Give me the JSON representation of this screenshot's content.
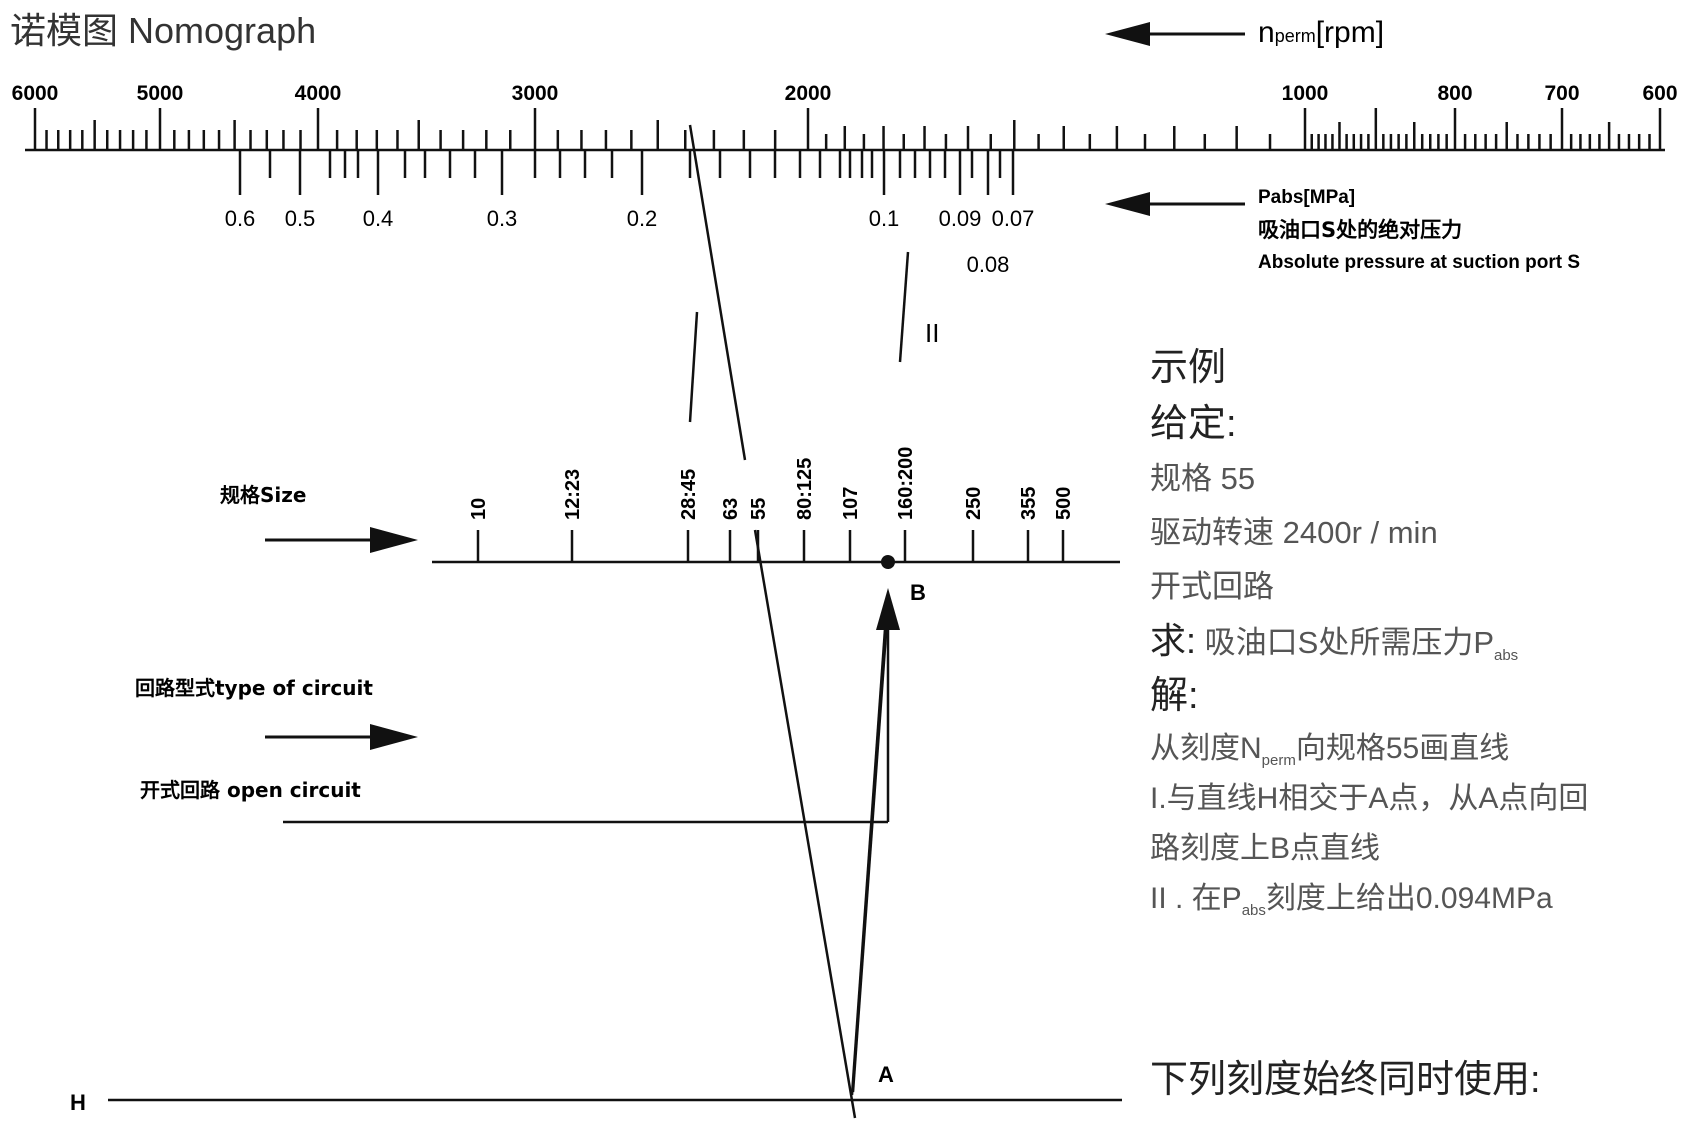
{
  "title": "诺模图 Nomograph",
  "rpm_scale": {
    "label": "n",
    "label_sub": "perm",
    "label_unit": "[rpm]",
    "ticks": [
      "6000",
      "5000",
      "4000",
      "3000",
      "2000",
      "1000",
      "800",
      "700",
      "600"
    ]
  },
  "pressure_scale": {
    "label": "Pabs[MPa]",
    "label_cn": "吸油口S处的绝对压力",
    "label_en": "Absolute pressure at suction port S",
    "ticks": [
      "0.6",
      "0.5",
      "0.4",
      "0.3",
      "0.2",
      "0.1",
      "0.09",
      "0.07",
      "0.08"
    ]
  },
  "size_scale": {
    "label": "规格Size",
    "ticks": [
      "10",
      "12:23",
      "28:45",
      "63",
      "55",
      "80:125",
      "107",
      "160:200",
      "250",
      "355",
      "500"
    ]
  },
  "circuit": {
    "label": "回路型式type of circuit",
    "open_label": "开式回路 open circuit"
  },
  "markers": {
    "A": "A",
    "B": "B",
    "H": "H",
    "II": "II"
  },
  "example": {
    "heading": "示例",
    "given": "给定:",
    "size": "规格 55",
    "speed": "驱动转速 2400r / min",
    "circuit": "开式回路",
    "find_label": "求:",
    "find_text": "吸油口S处所需压力P",
    "find_sub": "abs",
    "solution": "解:",
    "step1a": "从刻度N",
    "step1a_sub": "perm",
    "step1a_tail": "向规格55画直线",
    "step1b": "I.与直线H相交于A点，从A点向回",
    "step1c": "路刻度上B点直线",
    "step2a": "II . 在P",
    "step2a_sub": "abs",
    "step2a_tail": "刻度上给出0.094MPa"
  },
  "footer": "下列刻度始终同时使用:"
}
